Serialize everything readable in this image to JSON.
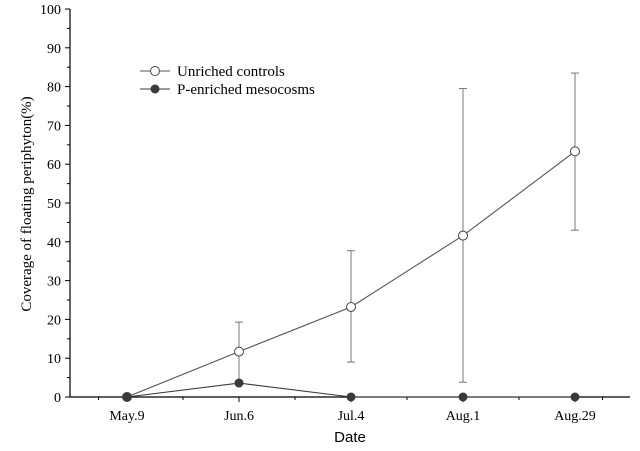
{
  "chart_data": {
    "type": "line",
    "title": "",
    "xlabel": "Date",
    "ylabel": "Coverage of floating periphyton(%)",
    "categories": [
      "May.9",
      "Jun.6",
      "Jul.4",
      "Aug.1",
      "Aug.29"
    ],
    "ylim": [
      0,
      100
    ],
    "yticks": [
      0,
      10,
      20,
      30,
      40,
      50,
      60,
      70,
      80,
      90,
      100
    ],
    "grid": false,
    "legend_position": "top-left",
    "series": [
      {
        "name": "Unriched controls",
        "marker": "open-circle",
        "color": "#555555",
        "values": [
          0,
          11.7,
          23.2,
          41.6,
          63.3
        ],
        "error_low": [
          0,
          4.0,
          9.0,
          3.8,
          43.0
        ],
        "error_high": [
          0,
          19.3,
          37.7,
          79.5,
          83.5
        ]
      },
      {
        "name": "P-enriched mesocosms",
        "marker": "filled-circle",
        "color": "#3a3a3a",
        "values": [
          0,
          3.6,
          0,
          0,
          0
        ]
      }
    ]
  }
}
